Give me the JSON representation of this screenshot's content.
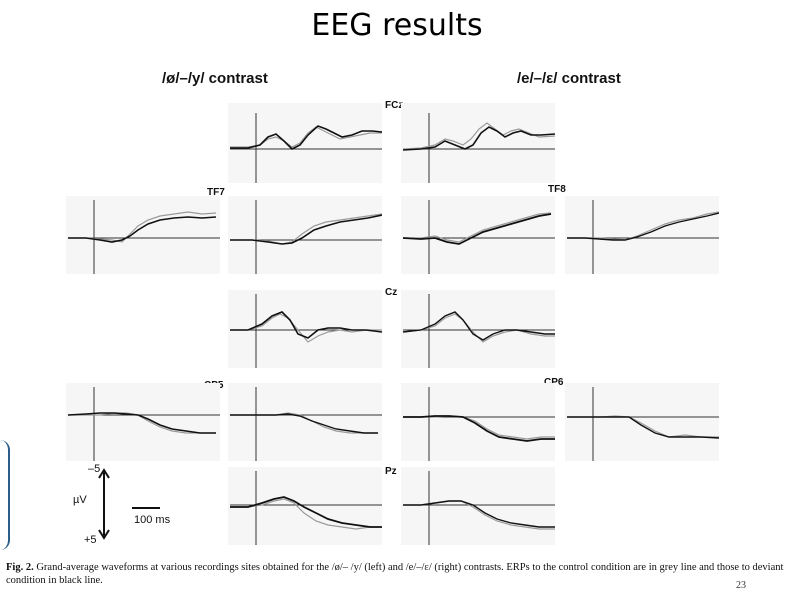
{
  "slide": {
    "title": "EEG results",
    "page_number": "23"
  },
  "contrasts": {
    "left": "/ø/–/y/ contrast",
    "right": "/e/–/ε/ contrast"
  },
  "sites": {
    "fcz": "FCz",
    "tf7": "TF7",
    "tf8": "TF8",
    "cz": "Cz",
    "cp5": "CP5",
    "cp6": "CP6",
    "pz": "Pz"
  },
  "scale": {
    "top": "–5",
    "unit": "µV",
    "bottom": "+5",
    "time": "100 ms"
  },
  "caption": {
    "label": "Fig. 2.",
    "text": " Grand-average waveforms at various recordings sites obtained for the /ø/– /y/ (left) and /e/–/ε/ (right) contrasts. ERPs to the control condition are in grey line and those to deviant condition in black line."
  },
  "colors": {
    "control": "#9a9a9a",
    "deviant": "#111111"
  }
}
